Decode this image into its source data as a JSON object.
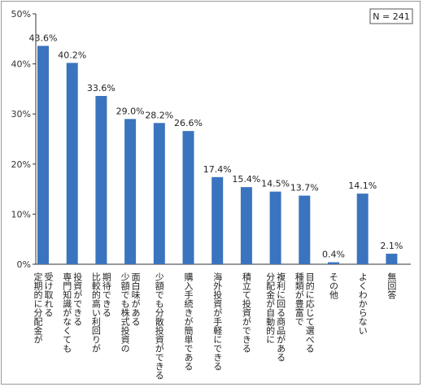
{
  "chart_data": {
    "type": "bar",
    "note": "N = 241",
    "categories": [
      "受け取れる\n定期的に分配金が",
      "投資ができる\n専門知識がなくても",
      "期待できる\n比較的高い利回りが",
      "面白味がある\n少額でも株式投資の",
      "少額でも分散投資ができる",
      "購入手続きが簡単である",
      "海外投資が手軽にできる",
      "積立て投資ができる",
      "複利に回る商品がある\n分配金が自動的に",
      "目的に応じて選べる\n種類が豊富で",
      "その他",
      "よくわからない",
      "無回答"
    ],
    "values": [
      43.6,
      40.2,
      33.6,
      29.0,
      28.2,
      26.6,
      17.4,
      15.4,
      14.5,
      13.7,
      0.4,
      14.1,
      2.1
    ],
    "value_labels": [
      "43.6%",
      "40.2%",
      "33.6%",
      "29.0%",
      "28.2%",
      "26.6%",
      "17.4%",
      "15.4%",
      "14.5%",
      "13.7%",
      "0.4%",
      "14.1%",
      "2.1%"
    ],
    "y_ticks": [
      "0%",
      "10%",
      "20%",
      "30%",
      "40%",
      "50%"
    ],
    "ylim": [
      0,
      50
    ],
    "bar_color": "#3a74bf",
    "grid": false
  }
}
